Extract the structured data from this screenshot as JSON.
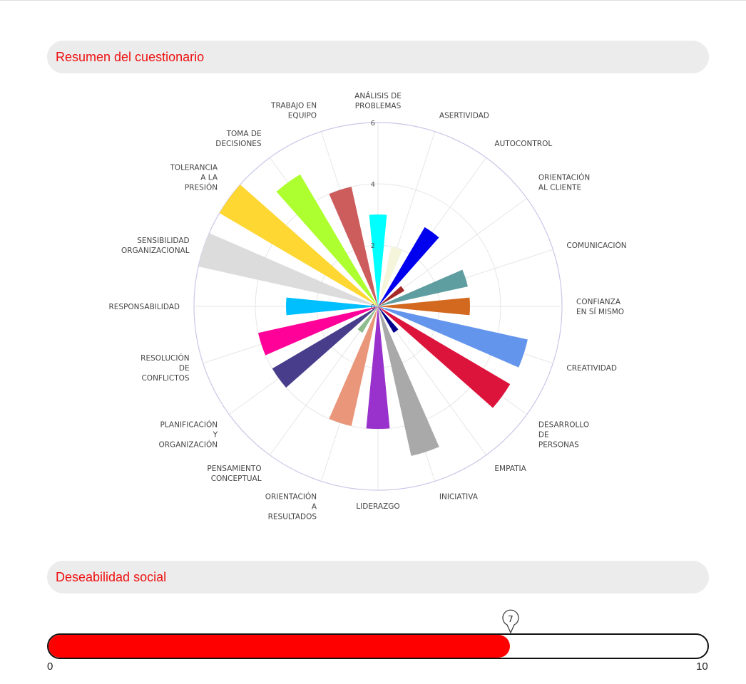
{
  "section1": {
    "title": "Resumen del cuestionario"
  },
  "section2": {
    "title": "Deseabilidad social"
  },
  "chart_data": {
    "type": "polar_bar",
    "title": "",
    "rmax": 6,
    "radial_ticks": [
      "0",
      "2",
      "4",
      "6"
    ],
    "radial_tick_values": [
      0,
      2,
      4,
      6
    ],
    "categories": [
      [
        "ANÁLISIS DE",
        "PROBLEMAS"
      ],
      [
        "ASERTIVIDAD"
      ],
      [
        "AUTOCONTROL"
      ],
      [
        "ORIENTACIÓN",
        "AL CLIENTE"
      ],
      [
        "COMUNICACIÓN"
      ],
      [
        "CONFIANZA",
        "EN SÍ MISMO"
      ],
      [
        "CREATIVIDAD"
      ],
      [
        "DESARROLLO",
        "DE",
        "PERSONAS"
      ],
      [
        "EMPATIA"
      ],
      [
        "INICIATIVA"
      ],
      [
        "LIDERAZGO"
      ],
      [
        "ORIENTACIÓN",
        "A",
        "RESULTADOS"
      ],
      [
        "PENSAMIENTO",
        "CONCEPTUAL"
      ],
      [
        "PLANIFICACIÓN",
        "Y",
        "ORGANIZACIÓN"
      ],
      [
        "RESOLUCIÓN",
        "DE",
        "CONFLICTOS"
      ],
      [
        "RESPONSABILIDAD"
      ],
      [
        "SENSIBILIDAD",
        "ORGANIZACIONAL"
      ],
      [
        "TOLERANCIA",
        "A LA",
        "PRESIÓN"
      ],
      [
        "TOMA DE",
        "DECISIONES"
      ],
      [
        "TRABAJO EN",
        "EQUIPO"
      ]
    ],
    "values": [
      3,
      2,
      3,
      1,
      3,
      3,
      5,
      5,
      1,
      5,
      4,
      4,
      1,
      4,
      4,
      3,
      6,
      6,
      5,
      4
    ],
    "colors": [
      "#00ffff",
      "#f5f5dc",
      "#0000ee",
      "#a52a2a",
      "#5f9ea0",
      "#d2691e",
      "#6495ed",
      "#dc143c",
      "#00008b",
      "#a9a9a9",
      "#9932cc",
      "#e9967a",
      "#8fbc8f",
      "#483d8b",
      "#ff0099",
      "#00bfff",
      "#dcdcdc",
      "#ffd732",
      "#adff2f",
      "#cd5c5c"
    ]
  },
  "gauge": {
    "min_label": "0",
    "max_label": "10",
    "min": 0,
    "max": 10,
    "value": 7,
    "value_label": "7",
    "fill_color": "#ff0000"
  }
}
